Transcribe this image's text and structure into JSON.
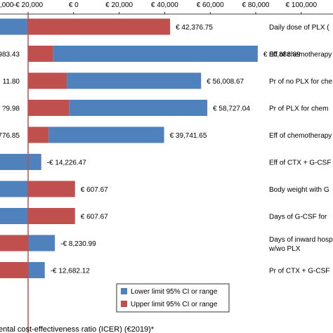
{
  "chart_data": {
    "type": "bar",
    "orientation": "horizontal",
    "subtype": "tornado",
    "xlabel": "ental cost-effectiveness ratio (ICER) (€2019)*",
    "xlim": [
      -40000,
      100000
    ],
    "reference_line": -20000,
    "xticks": [
      {
        "value": -20000,
        "label": "-€ 20,000"
      },
      {
        "value": 0,
        "label": "€ 0"
      },
      {
        "value": 20000,
        "label": "€ 20,000"
      },
      {
        "value": 40000,
        "label": "€ 40,000"
      },
      {
        "value": 60000,
        "label": "€ 60,000"
      },
      {
        "value": 80000,
        "label": "€ 80,000"
      },
      {
        "value": 100000,
        "label": "€ 100,000"
      }
    ],
    "xtick_partial": ",000",
    "legend": {
      "position": "bottom-center",
      "entries": [
        {
          "name": "Lower limit 95% CI or range",
          "color": "#4F81BD"
        },
        {
          "name": "Upper limit 95% CI or range",
          "color": "#C0504D"
        }
      ]
    },
    "colors": {
      "lower": "#4F81BD",
      "upper": "#C0504D",
      "reference": "#C0504D"
    },
    "rows": [
      {
        "category": "Daily dose of PLX (",
        "left": -40000,
        "right": 42376.75,
        "segments": [
          {
            "from": -40000,
            "to": -20000,
            "series": "lower"
          },
          {
            "from": -20000,
            "to": 42376.75,
            "series": "upper"
          }
        ],
        "left_label": "",
        "right_label": "€ 42,376.75"
      },
      {
        "category": "Eff of chemotherapy",
        "left": -9000,
        "right": 80888.89,
        "segments": [
          {
            "from": -20000,
            "to": -9000,
            "series": "upper"
          },
          {
            "from": -9000,
            "to": 80888.89,
            "series": "lower"
          }
        ],
        "left_label": "983.43",
        "right_label": "€ 80,888.89"
      },
      {
        "category": "Pr of no PLX for che",
        "left": -3000,
        "right": 56008.67,
        "segments": [
          {
            "from": -20000,
            "to": -3000,
            "series": "upper"
          },
          {
            "from": -3000,
            "to": 56008.67,
            "series": "lower"
          }
        ],
        "left_label": "11.80",
        "right_label": "€ 56,008.67"
      },
      {
        "category": "Pr of PLX for chem",
        "left": -2000,
        "right": 58727.04,
        "segments": [
          {
            "from": -20000,
            "to": -2000,
            "series": "upper"
          },
          {
            "from": -2000,
            "to": 58727.04,
            "series": "lower"
          }
        ],
        "left_label": "?9.98",
        "right_label": "€ 58,727.04"
      },
      {
        "category": "Eff of chemotherapy",
        "left": -11000,
        "right": 39741.65,
        "segments": [
          {
            "from": -20000,
            "to": -11000,
            "series": "upper"
          },
          {
            "from": -11000,
            "to": 39741.65,
            "series": "lower"
          }
        ],
        "left_label": "776.85",
        "right_label": "€ 39,741.65"
      },
      {
        "category": "Eff of CTX + G-CSF",
        "left": -40000,
        "right": -14226.47,
        "segments": [
          {
            "from": -40000,
            "to": -14226.47,
            "series": "lower"
          }
        ],
        "left_label": "",
        "right_label": "-€ 14,226.47"
      },
      {
        "category": "Body weight with G",
        "left": -40000,
        "right": 607.67,
        "segments": [
          {
            "from": -40000,
            "to": -20000,
            "series": "lower"
          },
          {
            "from": -20000,
            "to": 607.67,
            "series": "upper"
          }
        ],
        "left_label": "",
        "right_label": "€ 607.67"
      },
      {
        "category": "Days of G-CSF for",
        "left": -40000,
        "right": 607.67,
        "segments": [
          {
            "from": -40000,
            "to": -20000,
            "series": "lower"
          },
          {
            "from": -20000,
            "to": 607.67,
            "series": "upper"
          }
        ],
        "left_label": "",
        "right_label": "€ 607.67"
      },
      {
        "category": "Days of inward hosp\nw/wo PLX",
        "left": -40000,
        "right": -8230.99,
        "segments": [
          {
            "from": -40000,
            "to": -20000,
            "series": "upper"
          },
          {
            "from": -20000,
            "to": -8230.99,
            "series": "lower"
          }
        ],
        "left_label": "",
        "right_label": "-€ 8,230.99"
      },
      {
        "category": "Pr of CTX + G-CSF",
        "left": -40000,
        "right": -12682.12,
        "segments": [
          {
            "from": -40000,
            "to": -20000,
            "series": "upper"
          },
          {
            "from": -20000,
            "to": -12682.12,
            "series": "lower"
          }
        ],
        "left_label": "",
        "right_label": "-€ 12,682.12"
      }
    ]
  }
}
